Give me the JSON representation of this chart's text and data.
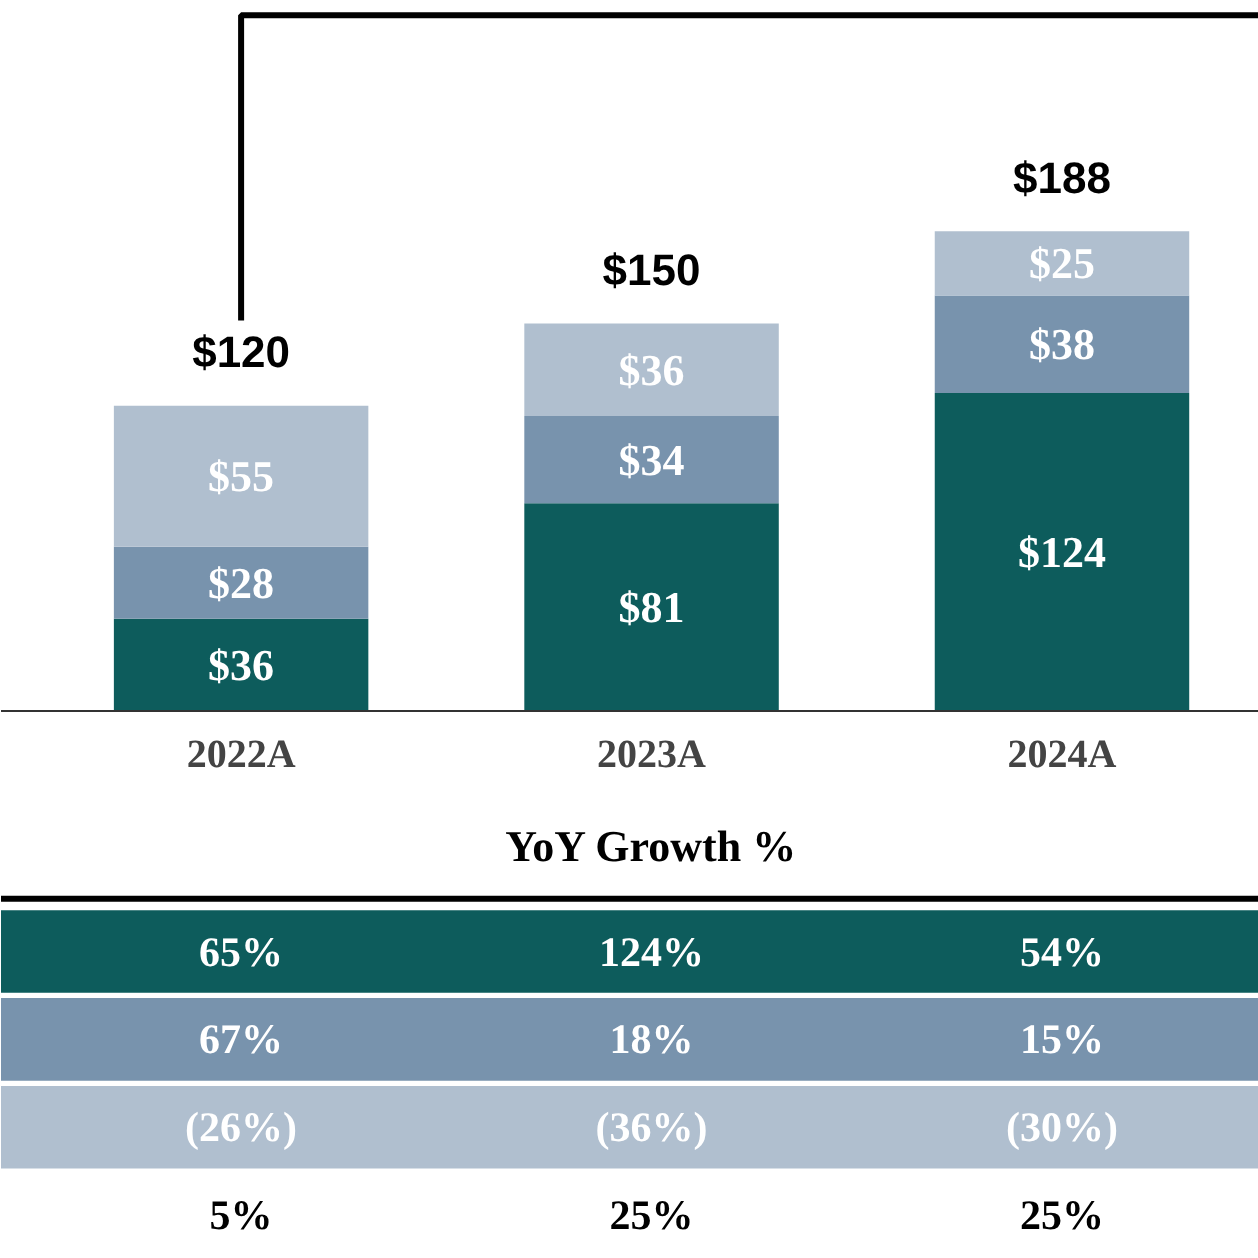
{
  "chart_data": {
    "type": "bar",
    "stacked": true,
    "categories": [
      "2022A",
      "2023A",
      "2024A"
    ],
    "series": [
      {
        "color": "#0d5c5c",
        "values": [
          36,
          81,
          124
        ],
        "value_labels": [
          "$36",
          "$81",
          "$124"
        ]
      },
      {
        "color": "#7893ad",
        "values": [
          28,
          34,
          38
        ],
        "value_labels": [
          "$28",
          "$34",
          "$38"
        ]
      },
      {
        "color": "#b0bfcf",
        "values": [
          55,
          36,
          25
        ],
        "value_labels": [
          "$55",
          "$36",
          "$25"
        ]
      }
    ],
    "totals": [
      "$120",
      "$150",
      "$188"
    ],
    "annotations": [
      "YoY Growth %",
      "65%",
      "124%",
      "54%",
      "67%",
      "18%",
      "15%",
      "(26%)",
      "(36%)",
      "(30%)",
      "5%",
      "25%",
      "25%"
    ],
    "grid": false
  }
}
